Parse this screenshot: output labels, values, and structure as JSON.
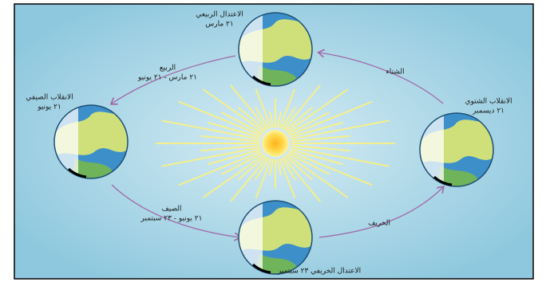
{
  "nodes": [
    {
      "label": "الاعتدال الربيعي",
      "date": "٢١ مارس"
    },
    {
      "label": "الانقلاب الصيفي",
      "date": "٢١ يونيو"
    },
    {
      "label": "الاعتدال الخريفي ٢٣ سبتمبر"
    },
    {
      "label": "الانقلاب الشتوي",
      "date": "٢١ ديسمبر"
    }
  ],
  "seasons": [
    {
      "label": "الربيع",
      "period": "٢١ مارس - ٢١ يونيو"
    },
    {
      "label": "الصيف",
      "period": "٢١ يونيو - ٢٣ سبتمبر"
    },
    {
      "label": "الخريف"
    },
    {
      "label": "الشتاء"
    }
  ]
}
